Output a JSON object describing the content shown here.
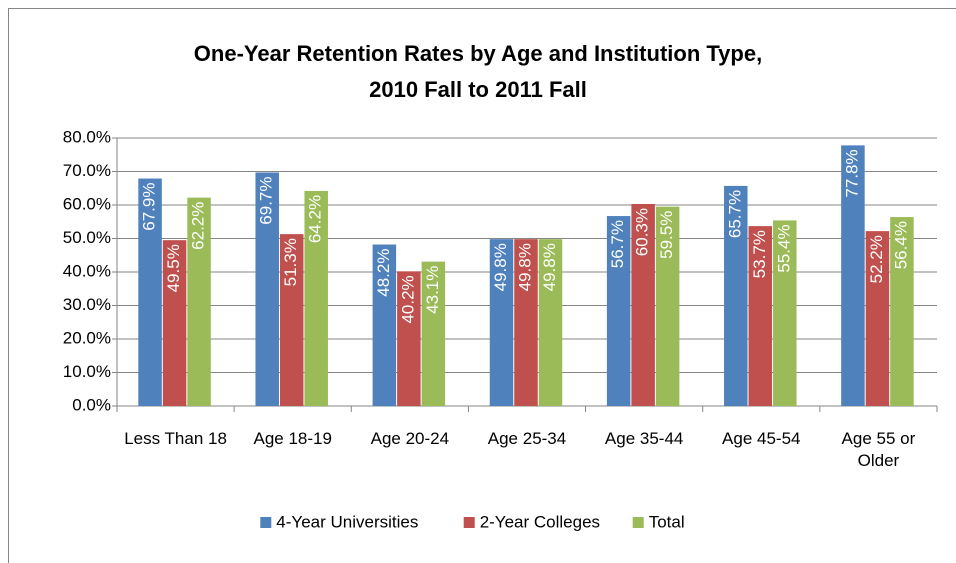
{
  "chart_data": {
    "type": "bar",
    "title": "One-Year Retention Rates by Age and Institution Type, 2010 Fall to 2011 Fall",
    "categories": [
      "Less Than 18",
      "Age 18-19",
      "Age 20-24",
      "Age 25-34",
      "Age 35-44",
      "Age 45-54",
      "Age 55 or Older"
    ],
    "series": [
      {
        "name": "4-Year Universities",
        "color": "#4f81bd",
        "values": [
          67.9,
          69.7,
          48.2,
          49.8,
          56.7,
          65.7,
          77.8
        ],
        "value_labels": [
          "67.9%",
          "69.7%",
          "48.2%",
          "49.8%",
          "56.7%",
          "65.7%",
          "77.8%"
        ]
      },
      {
        "name": "2-Year Colleges",
        "color": "#c0504d",
        "values": [
          49.5,
          51.3,
          40.2,
          49.8,
          60.3,
          53.7,
          52.2
        ],
        "value_labels": [
          "49.5%",
          "51.3%",
          "40.2%",
          "49.8%",
          "60.3%",
          "53.7%",
          "52.2%"
        ]
      },
      {
        "name": "Total",
        "color": "#9bbb59",
        "values": [
          62.2,
          64.2,
          43.1,
          49.8,
          59.5,
          55.4,
          56.4
        ],
        "value_labels": [
          "62.2%",
          "64.2%",
          "43.1%",
          "49.8%",
          "59.5%",
          "55.4%",
          "56.4%"
        ]
      }
    ],
    "ylim": [
      0,
      80
    ],
    "yticks": [
      {
        "value": 0,
        "label": "0.0%"
      },
      {
        "value": 10,
        "label": "10.0%"
      },
      {
        "value": 20,
        "label": "20.0%"
      },
      {
        "value": 30,
        "label": "30.0%"
      },
      {
        "value": 40,
        "label": "40.0%"
      },
      {
        "value": 50,
        "label": "50.0%"
      },
      {
        "value": 60,
        "label": "60.0%"
      },
      {
        "value": 70,
        "label": "70.0%"
      },
      {
        "value": 80,
        "label": "80.0%"
      }
    ],
    "grid": true,
    "legend": "bottom"
  }
}
